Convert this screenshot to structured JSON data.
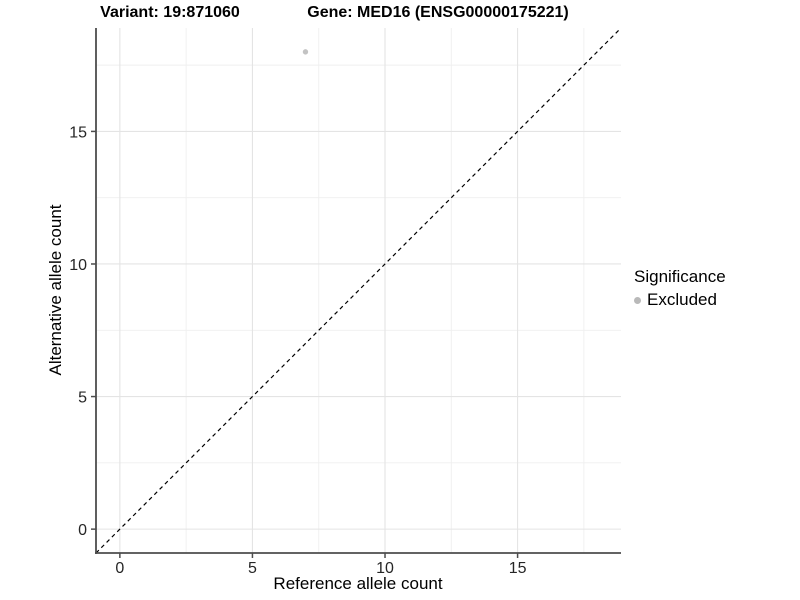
{
  "chart_data": {
    "type": "scatter",
    "title_left": "Variant: 19:871060",
    "title_right": "Gene: MED16 (ENSG00000175221)",
    "xlabel": "Reference allele count",
    "ylabel": "Alternative allele count",
    "xlim": [
      -0.9,
      18.9
    ],
    "ylim": [
      -0.9,
      18.9
    ],
    "xticks": [
      0,
      5,
      10,
      15
    ],
    "yticks": [
      0,
      5,
      10,
      15
    ],
    "xminor": [
      2.5,
      7.5,
      12.5,
      17.5
    ],
    "yminor": [
      2.5,
      7.5,
      12.5,
      17.5
    ],
    "grid": true,
    "legend_position": "right",
    "series": [
      {
        "name": "Excluded",
        "color": "#c3c3c3",
        "marker_radius": 2.7,
        "points": [
          {
            "x": 7,
            "y": 18
          }
        ]
      }
    ],
    "reference_line": {
      "type": "identity",
      "slope": 1,
      "intercept": 0,
      "style": "dashed",
      "color": "#000000"
    }
  },
  "legend": {
    "title": "Significance",
    "items": [
      {
        "label": "Excluded",
        "marker_color": "#b9b9b9"
      }
    ]
  },
  "style": {
    "grid_major": "#e4e4e4",
    "grid_minor": "#efefef",
    "axis_line": "#4d4d4d",
    "tick_text": "#262626",
    "background": "#ffffff"
  }
}
